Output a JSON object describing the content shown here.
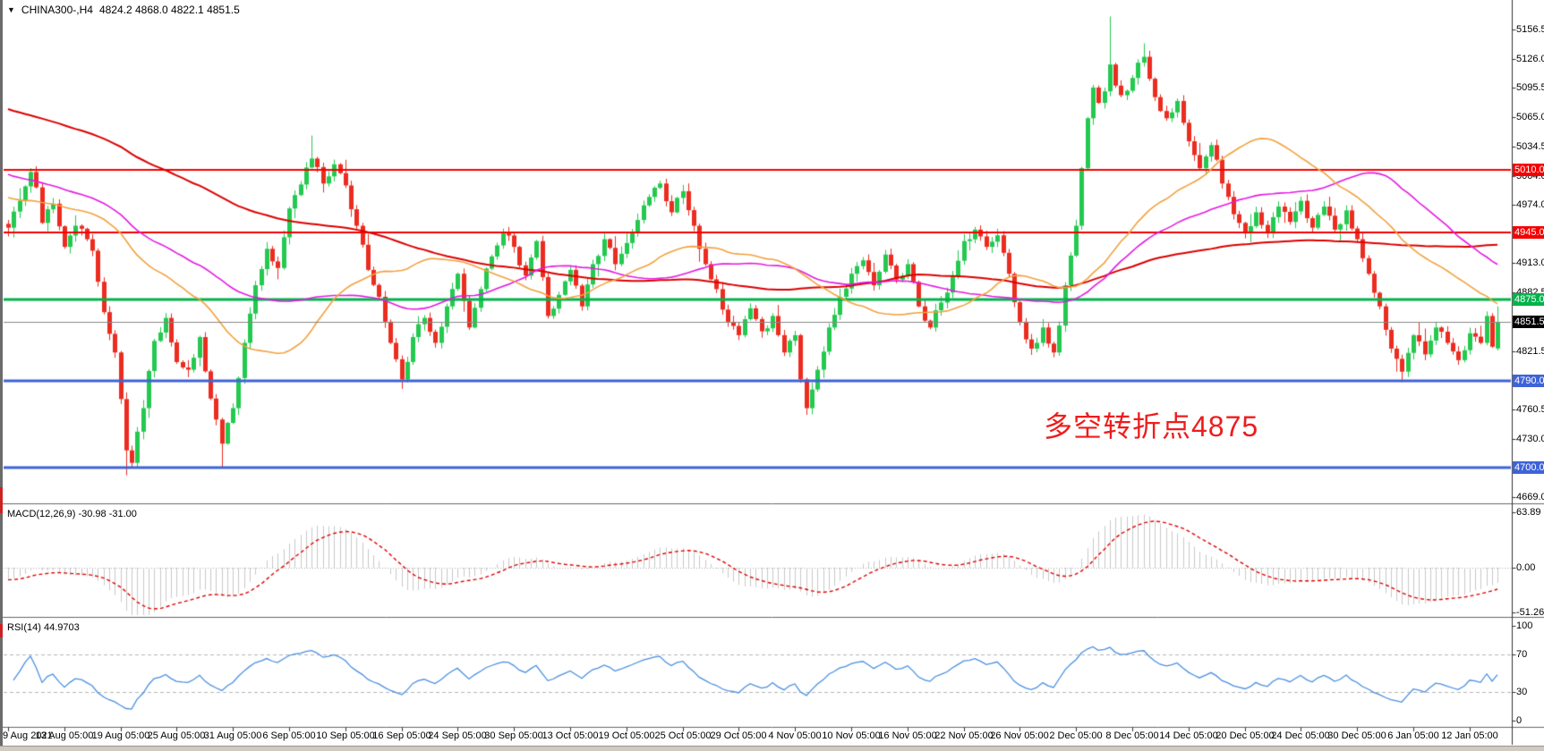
{
  "header": {
    "collapse_icon": "▼",
    "symbol": "CHINA300-,H4",
    "ohlc": "4824.2 4868.0 4822.1 4851.5"
  },
  "annotation": {
    "text": "多空转折点4875",
    "color": "#ee1c1c"
  },
  "chart_data": {
    "type": "candlestick",
    "symbol": "CHINA300-,H4",
    "timeframe": "H4",
    "last_bar_ohlc": {
      "open": 4824.2,
      "high": 4868.0,
      "low": 4822.1,
      "close": 4851.5
    },
    "bars": 266,
    "main_ylim": [
      4662.8,
      5187.2
    ],
    "price_axis_ticks": [
      5156.5,
      5126.0,
      5095.5,
      5065.0,
      5034.5,
      5004.0,
      4974.0,
      4913.0,
      4882.5,
      4821.5,
      4760.5,
      4730.0,
      4669.0
    ],
    "levels": [
      {
        "value": 5010.0,
        "label": "5010.0",
        "color": "#f50000",
        "width": 2
      },
      {
        "value": 4945.0,
        "label": "4945.0",
        "color": "#f50000",
        "width": 2
      },
      {
        "value": 4875.0,
        "label": "4875.0",
        "color": "#00b44b",
        "width": 3
      },
      {
        "value": 4790.0,
        "label": "4790.0",
        "color": "#3e63d8",
        "width": 3
      },
      {
        "value": 4700.0,
        "label": "4700.0",
        "color": "#3e63d8",
        "width": 3
      }
    ],
    "current_price": {
      "value": 4851.5,
      "label": "4851.5",
      "line_color": "#888888",
      "label_bg": "#000000"
    },
    "candle_colors": {
      "up": "#23c94f",
      "down": "#ec2c20"
    },
    "moving_averages": [
      {
        "period": 120,
        "color": "#dd0000",
        "width": 2
      },
      {
        "period": 55,
        "color": "#e31ae3",
        "width": 1.6
      },
      {
        "period": 34,
        "color": "#f2a23e",
        "width": 1.6
      }
    ],
    "close_waypoints": [
      [
        0,
        4950
      ],
      [
        2,
        4978
      ],
      [
        4,
        5008
      ],
      [
        5,
        4992
      ],
      [
        6,
        4955
      ],
      [
        8,
        4975
      ],
      [
        10,
        4930
      ],
      [
        12,
        4952
      ],
      [
        14,
        4938
      ],
      [
        15,
        4926
      ],
      [
        17,
        4862
      ],
      [
        19,
        4820
      ],
      [
        21,
        4718
      ],
      [
        22,
        4705
      ],
      [
        24,
        4762
      ],
      [
        26,
        4832
      ],
      [
        28,
        4856
      ],
      [
        30,
        4810
      ],
      [
        32,
        4802
      ],
      [
        34,
        4836
      ],
      [
        36,
        4772
      ],
      [
        38,
        4725
      ],
      [
        40,
        4762
      ],
      [
        42,
        4830
      ],
      [
        44,
        4890
      ],
      [
        46,
        4928
      ],
      [
        48,
        4908
      ],
      [
        50,
        4970
      ],
      [
        52,
        4995
      ],
      [
        54,
        5022
      ],
      [
        56,
        4996
      ],
      [
        58,
        5016
      ],
      [
        60,
        4994
      ],
      [
        62,
        4952
      ],
      [
        64,
        4906
      ],
      [
        66,
        4878
      ],
      [
        68,
        4830
      ],
      [
        70,
        4792
      ],
      [
        72,
        4836
      ],
      [
        74,
        4856
      ],
      [
        76,
        4830
      ],
      [
        78,
        4868
      ],
      [
        80,
        4902
      ],
      [
        82,
        4846
      ],
      [
        84,
        4886
      ],
      [
        86,
        4920
      ],
      [
        88,
        4944
      ],
      [
        90,
        4930
      ],
      [
        92,
        4900
      ],
      [
        94,
        4936
      ],
      [
        96,
        4858
      ],
      [
        98,
        4880
      ],
      [
        100,
        4906
      ],
      [
        102,
        4868
      ],
      [
        104,
        4912
      ],
      [
        106,
        4938
      ],
      [
        108,
        4912
      ],
      [
        110,
        4934
      ],
      [
        112,
        4958
      ],
      [
        114,
        4982
      ],
      [
        116,
        4996
      ],
      [
        118,
        4966
      ],
      [
        120,
        4988
      ],
      [
        122,
        4952
      ],
      [
        124,
        4912
      ],
      [
        126,
        4886
      ],
      [
        128,
        4852
      ],
      [
        130,
        4838
      ],
      [
        132,
        4866
      ],
      [
        134,
        4842
      ],
      [
        136,
        4858
      ],
      [
        138,
        4820
      ],
      [
        140,
        4838
      ],
      [
        141,
        4792
      ],
      [
        142,
        4762
      ],
      [
        144,
        4802
      ],
      [
        146,
        4846
      ],
      [
        148,
        4878
      ],
      [
        150,
        4902
      ],
      [
        152,
        4916
      ],
      [
        154,
        4890
      ],
      [
        156,
        4922
      ],
      [
        158,
        4896
      ],
      [
        160,
        4912
      ],
      [
        162,
        4868
      ],
      [
        164,
        4846
      ],
      [
        166,
        4872
      ],
      [
        168,
        4900
      ],
      [
        170,
        4936
      ],
      [
        172,
        4948
      ],
      [
        174,
        4930
      ],
      [
        176,
        4942
      ],
      [
        178,
        4902
      ],
      [
        180,
        4852
      ],
      [
        182,
        4824
      ],
      [
        184,
        4846
      ],
      [
        186,
        4820
      ],
      [
        187,
        4848
      ],
      [
        188,
        4890
      ],
      [
        190,
        4952
      ],
      [
        191,
        5012
      ],
      [
        192,
        5064
      ],
      [
        193,
        5096
      ],
      [
        194,
        5080
      ],
      [
        195,
        5092
      ],
      [
        196,
        5120
      ],
      [
        197,
        5098
      ],
      [
        198,
        5088
      ],
      [
        200,
        5106
      ],
      [
        202,
        5128
      ],
      [
        204,
        5086
      ],
      [
        206,
        5064
      ],
      [
        208,
        5082
      ],
      [
        210,
        5040
      ],
      [
        212,
        5012
      ],
      [
        214,
        5036
      ],
      [
        216,
        4996
      ],
      [
        218,
        4964
      ],
      [
        220,
        4944
      ],
      [
        222,
        4966
      ],
      [
        224,
        4944
      ],
      [
        226,
        4972
      ],
      [
        228,
        4956
      ],
      [
        230,
        4978
      ],
      [
        232,
        4950
      ],
      [
        234,
        4972
      ],
      [
        236,
        4948
      ],
      [
        238,
        4968
      ],
      [
        240,
        4938
      ],
      [
        242,
        4902
      ],
      [
        244,
        4868
      ],
      [
        246,
        4824
      ],
      [
        248,
        4800
      ],
      [
        250,
        4838
      ],
      [
        252,
        4818
      ],
      [
        254,
        4846
      ],
      [
        256,
        4830
      ],
      [
        258,
        4812
      ],
      [
        260,
        4840
      ],
      [
        262,
        4830
      ],
      [
        263,
        4858
      ],
      [
        264,
        4826
      ],
      [
        265,
        4851.5
      ]
    ],
    "prehistory_waypoints": [
      [
        -130,
        5215
      ],
      [
        -110,
        5165
      ],
      [
        -90,
        5140
      ],
      [
        -70,
        5105
      ],
      [
        -50,
        5060
      ],
      [
        -30,
        5010
      ],
      [
        -20,
        4985
      ],
      [
        -10,
        4968
      ],
      [
        -1,
        4954
      ]
    ],
    "wick_overrides": [
      {
        "bar": 4,
        "high": 5012
      },
      {
        "bar": 21,
        "low": 4692
      },
      {
        "bar": 38,
        "low": 4701
      },
      {
        "bar": 54,
        "high": 5046
      },
      {
        "bar": 70,
        "low": 4782
      },
      {
        "bar": 142,
        "low": 4755
      },
      {
        "bar": 196,
        "high": 5170
      },
      {
        "bar": 202,
        "high": 5142
      },
      {
        "bar": 248,
        "low": 4789
      }
    ],
    "noise_amplitude": 5,
    "seed": 7,
    "macd": {
      "label": "MACD(12,26,9) -30.98 -31.00",
      "params": [
        12,
        26,
        9
      ],
      "current_values": [
        -30.98,
        -31.0
      ],
      "ticks": [
        {
          "v": 63.89,
          "label": "63.89"
        },
        {
          "v": 0,
          "label": "0.00"
        },
        {
          "v": -51.26,
          "label": "-51.26"
        }
      ],
      "histogram_color": "#c9c9c9",
      "signal_color": "#e00000"
    },
    "rsi": {
      "label": "RSI(14) 44.9703",
      "period": 14,
      "current_value": 44.9703,
      "ticks": [
        {
          "v": 100,
          "label": "100"
        },
        {
          "v": 70,
          "label": "70"
        },
        {
          "v": 30,
          "label": "30"
        },
        {
          "v": 0,
          "label": "0"
        }
      ],
      "levels": [
        70,
        30
      ],
      "line_color": "#4a90e2",
      "level_color": "#b5b5b5"
    },
    "x_axis": {
      "date_labels": [
        {
          "bar": 0,
          "label": "9 Aug 2021"
        },
        {
          "bar": 10,
          "label": "13 Aug 05:00"
        },
        {
          "bar": 20,
          "label": "19 Aug 05:00"
        },
        {
          "bar": 30,
          "label": "25 Aug 05:00"
        },
        {
          "bar": 40,
          "label": "31 Aug 05:00"
        },
        {
          "bar": 50,
          "label": "6 Sep 05:00"
        },
        {
          "bar": 60,
          "label": "10 Sep 05:00"
        },
        {
          "bar": 70,
          "label": "16 Sep 05:00"
        },
        {
          "bar": 80,
          "label": "24 Sep 05:00"
        },
        {
          "bar": 90,
          "label": "30 Sep 05:00"
        },
        {
          "bar": 100,
          "label": "13 Oct 05:00"
        },
        {
          "bar": 110,
          "label": "19 Oct 05:00"
        },
        {
          "bar": 120,
          "label": "25 Oct 05:00"
        },
        {
          "bar": 130,
          "label": "29 Oct 05:00"
        },
        {
          "bar": 140,
          "label": "4 Nov 05:00"
        },
        {
          "bar": 150,
          "label": "10 Nov 05:00"
        },
        {
          "bar": 160,
          "label": "16 Nov 05:00"
        },
        {
          "bar": 170,
          "label": "22 Nov 05:00"
        },
        {
          "bar": 180,
          "label": "26 Nov 05:00"
        },
        {
          "bar": 190,
          "label": "2 Dec 05:00"
        },
        {
          "bar": 200,
          "label": "8 Dec 05:00"
        },
        {
          "bar": 210,
          "label": "14 Dec 05:00"
        },
        {
          "bar": 220,
          "label": "20 Dec 05:00"
        },
        {
          "bar": 230,
          "label": "24 Dec 05:00"
        },
        {
          "bar": 240,
          "label": "30 Dec 05:00"
        },
        {
          "bar": 250,
          "label": "6 Jan 05:00"
        },
        {
          "bar": 260,
          "label": "12 Jan 05:00"
        }
      ]
    }
  }
}
